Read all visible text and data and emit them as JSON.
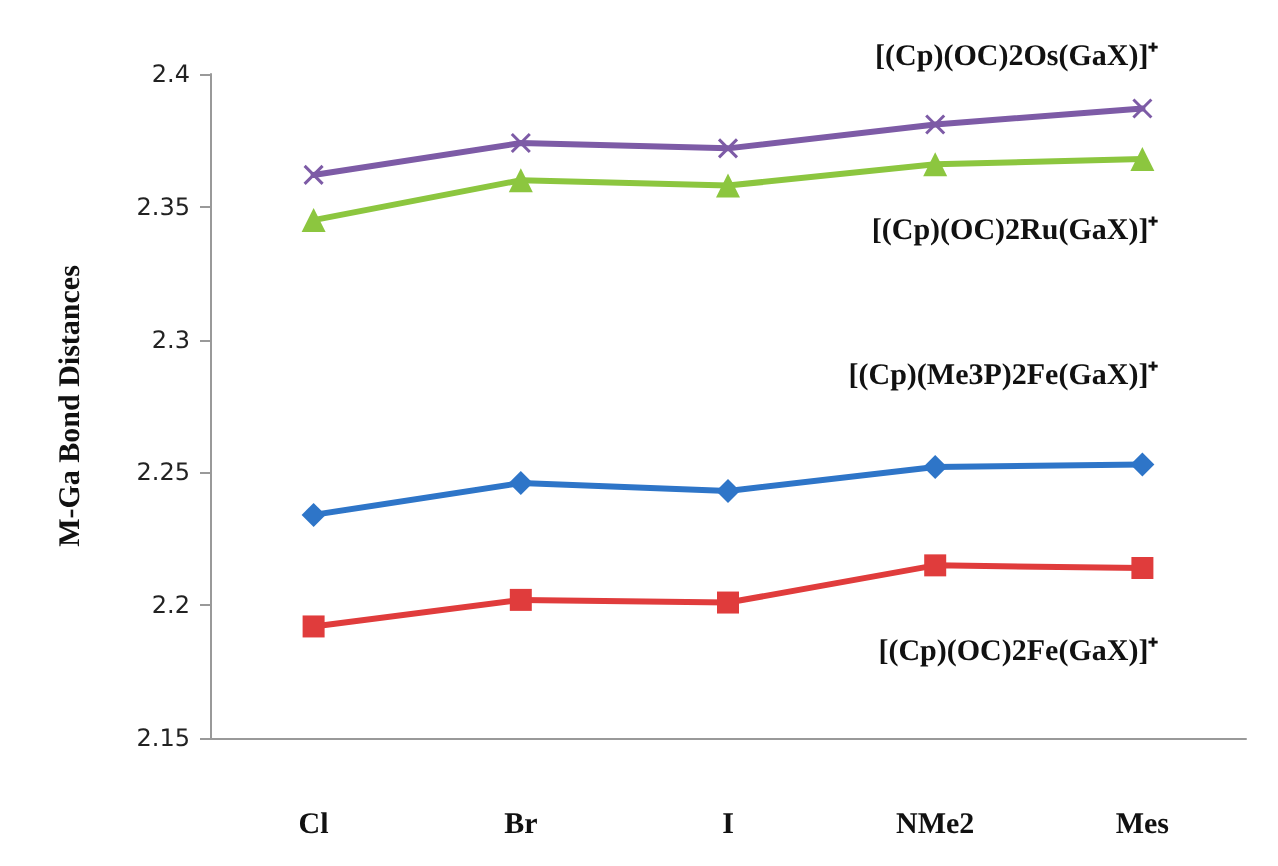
{
  "chart_data": {
    "type": "line",
    "ylabel": "M-Ga Bond Distances",
    "categories": [
      "Cl",
      "Br",
      "I",
      "NMe2",
      "Mes"
    ],
    "ylim": [
      2.15,
      2.4
    ],
    "yticks": [
      2.15,
      2.2,
      2.25,
      2.3,
      2.35,
      2.4
    ],
    "line_style": "solid",
    "series": [
      {
        "name": "[(Cp)(OC)2Os(GaX)]⁺",
        "color": "#7d5ba6",
        "marker": "cross",
        "values": [
          2.362,
          2.374,
          2.372,
          2.381,
          2.387
        ]
      },
      {
        "name": "[(Cp)(OC)2Ru(GaX)]⁺",
        "color": "#8cc63f",
        "marker": "triangle",
        "values": [
          2.345,
          2.36,
          2.358,
          2.366,
          2.368
        ]
      },
      {
        "name": "[(Cp)(Me3P)2Fe(GaX)]⁺",
        "color": "#2e75c8",
        "marker": "diamond",
        "values": [
          2.234,
          2.246,
          2.243,
          2.252,
          2.253
        ]
      },
      {
        "name": "[(Cp)(OC)2Fe(GaX)]⁺",
        "color": "#e03c3c",
        "marker": "square",
        "values": [
          2.192,
          2.202,
          2.201,
          2.215,
          2.214
        ]
      }
    ]
  }
}
